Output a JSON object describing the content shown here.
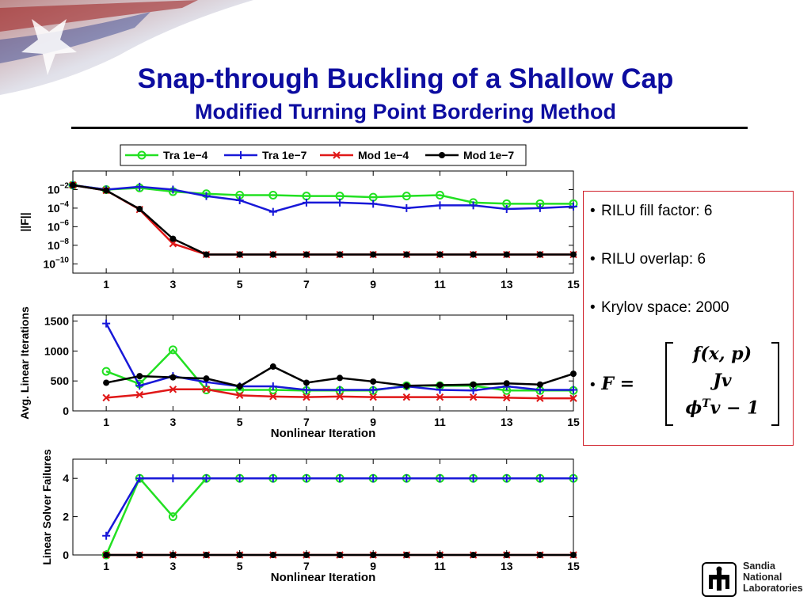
{
  "slide": {
    "title": "Snap-through Buckling of a Shallow Cap",
    "subtitle": "Modified Turning Point Bordering Method"
  },
  "info": {
    "bullets": [
      "RILU fill factor:  6",
      "RILU overlap: 6",
      "Krylov space:  2000"
    ],
    "equation": {
      "lhs": "F =",
      "rows": [
        "f(x, p)",
        "Jv",
        "ϕTv − 1"
      ]
    }
  },
  "logo": {
    "lines": [
      "Sandia",
      "National",
      "Laboratories"
    ]
  },
  "colors": {
    "title": "#0d0da0",
    "tra_1e4": "#22e022",
    "tra_1e7": "#1818d8",
    "mod_1e4": "#e01818",
    "mod_1e7": "#000000",
    "infobox_border": "#d0202a"
  },
  "chart_data": [
    {
      "type": "line",
      "title": "",
      "xlabel": "",
      "ylabel": "||F||",
      "yscale": "log",
      "xlim": [
        0,
        15
      ],
      "ylim": [
        1e-11,
        1
      ],
      "xticks": [
        "1",
        "3",
        "5",
        "7",
        "9",
        "11",
        "13",
        "15"
      ],
      "yticks": [
        "10−2",
        "10−4",
        "10−6",
        "10−8",
        "10−10"
      ],
      "legend": [
        "Tra 1e−4",
        "Tra 1e−7",
        "Mod 1e−4",
        "Mod 1e−7"
      ],
      "legend_position": "top",
      "x": [
        0,
        1,
        2,
        3,
        4,
        5,
        6,
        7,
        8,
        9,
        10,
        11,
        12,
        13,
        14,
        15
      ],
      "series": [
        {
          "name": "Tra 1e−4",
          "marker": "circle",
          "values": [
            0.03,
            0.01,
            0.015,
            0.006,
            0.0035,
            0.0025,
            0.0025,
            0.002,
            0.002,
            0.0015,
            0.002,
            0.0025,
            0.0004,
            0.0003,
            0.0003,
            0.0003
          ]
        },
        {
          "name": "Tra 1e−7",
          "marker": "plus",
          "values": [
            0.03,
            0.01,
            0.02,
            0.01,
            0.002,
            0.0007,
            4e-05,
            0.0004,
            0.0004,
            0.0003,
            0.0001,
            0.0002,
            0.0002,
            8e-05,
            0.0001,
            0.00015
          ]
        },
        {
          "name": "Mod 1e−4",
          "marker": "x",
          "values": [
            0.03,
            0.008,
            7e-05,
            1.5e-08,
            1e-09,
            1e-09,
            1e-09,
            1e-09,
            1e-09,
            1e-09,
            1e-09,
            1e-09,
            1e-09,
            1e-09,
            1e-09,
            1e-09
          ]
        },
        {
          "name": "Mod 1e−7",
          "marker": "dot",
          "values": [
            0.03,
            0.008,
            8e-05,
            5e-08,
            1e-09,
            1e-09,
            1e-09,
            1e-09,
            1e-09,
            1e-09,
            1e-09,
            1e-09,
            1e-09,
            1e-09,
            1e-09,
            1e-09
          ]
        }
      ]
    },
    {
      "type": "line",
      "title": "",
      "xlabel": "Nonlinear Iteration",
      "ylabel": "Avg. Linear Iterations",
      "xlim": [
        0,
        15
      ],
      "ylim": [
        0,
        1600
      ],
      "xticks": [
        "1",
        "3",
        "5",
        "7",
        "9",
        "11",
        "13",
        "15"
      ],
      "yticks": [
        "1500",
        "1000",
        "500",
        "0"
      ],
      "x": [
        1,
        2,
        3,
        4,
        5,
        6,
        7,
        8,
        9,
        10,
        11,
        12,
        13,
        14,
        15
      ],
      "series": [
        {
          "name": "Tra 1e−4",
          "marker": "circle",
          "values": [
            660,
            450,
            1020,
            350,
            350,
            350,
            340,
            340,
            340,
            420,
            420,
            420,
            340,
            340,
            340
          ]
        },
        {
          "name": "Tra 1e−7",
          "marker": "plus",
          "values": [
            1460,
            420,
            580,
            480,
            410,
            410,
            350,
            350,
            350,
            410,
            350,
            340,
            410,
            350,
            350
          ]
        },
        {
          "name": "Mod 1e−4",
          "marker": "x",
          "values": [
            220,
            270,
            360,
            360,
            260,
            240,
            230,
            240,
            230,
            230,
            230,
            230,
            220,
            210,
            210
          ]
        },
        {
          "name": "Mod 1e−7",
          "marker": "dot",
          "values": [
            470,
            580,
            560,
            540,
            410,
            740,
            470,
            550,
            490,
            420,
            430,
            440,
            460,
            440,
            620
          ]
        }
      ]
    },
    {
      "type": "line",
      "title": "",
      "xlabel": "Nonlinear Iteration",
      "ylabel": "Linear Solver Failures",
      "xlim": [
        0,
        15
      ],
      "ylim": [
        0,
        5
      ],
      "xticks": [
        "1",
        "3",
        "5",
        "7",
        "9",
        "11",
        "13",
        "15"
      ],
      "yticks": [
        "4",
        "2",
        "0"
      ],
      "x": [
        1,
        2,
        3,
        4,
        5,
        6,
        7,
        8,
        9,
        10,
        11,
        12,
        13,
        14,
        15
      ],
      "series": [
        {
          "name": "Tra 1e−4",
          "marker": "circle",
          "values": [
            0,
            4,
            2,
            4,
            4,
            4,
            4,
            4,
            4,
            4,
            4,
            4,
            4,
            4,
            4
          ]
        },
        {
          "name": "Tra 1e−7",
          "marker": "plus",
          "values": [
            1,
            4,
            4,
            4,
            4,
            4,
            4,
            4,
            4,
            4,
            4,
            4,
            4,
            4,
            4
          ]
        },
        {
          "name": "Mod 1e−4",
          "marker": "x",
          "values": [
            0,
            0,
            0,
            0,
            0,
            0,
            0,
            0,
            0,
            0,
            0,
            0,
            0,
            0,
            0
          ]
        },
        {
          "name": "Mod 1e−7",
          "marker": "dot",
          "values": [
            0,
            0,
            0,
            0,
            0,
            0,
            0,
            0,
            0,
            0,
            0,
            0,
            0,
            0,
            0
          ]
        }
      ]
    }
  ]
}
